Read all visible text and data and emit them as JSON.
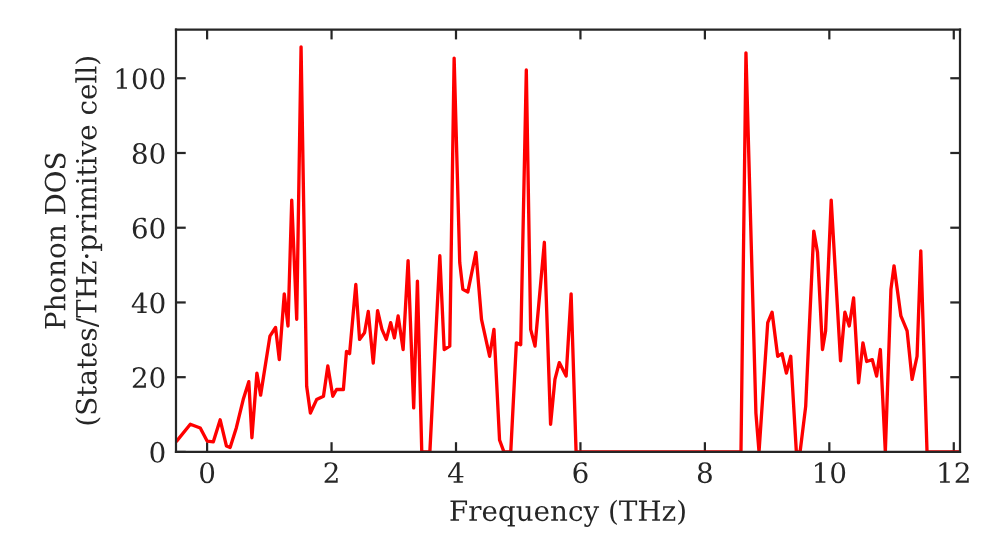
{
  "chart_data": {
    "type": "line",
    "xlabel": "Frequency (THz)",
    "ylabel": "Phonon DOS\n(States/THz·primitive cell)",
    "xlim": [
      -0.5,
      12.1
    ],
    "ylim": [
      0,
      113
    ],
    "xticks": [
      0,
      2,
      4,
      6,
      8,
      10,
      12
    ],
    "yticks": [
      0,
      20,
      40,
      60,
      80,
      100
    ],
    "marker": "none",
    "line_style": "solid",
    "series": [
      {
        "color": "#ff0000",
        "x": [
          -0.49,
          -0.27,
          -0.11,
          0.0,
          0.1,
          0.21,
          0.31,
          0.37,
          0.47,
          0.58,
          0.67,
          0.72,
          0.8,
          0.86,
          1.01,
          1.1,
          1.16,
          1.24,
          1.3,
          1.36,
          1.44,
          1.51,
          1.6,
          1.66,
          1.76,
          1.87,
          1.94,
          2.02,
          2.08,
          2.19,
          2.24,
          2.29,
          2.39,
          2.45,
          2.53,
          2.59,
          2.67,
          2.74,
          2.81,
          2.88,
          2.95,
          3.01,
          3.07,
          3.15,
          3.23,
          3.32,
          3.38,
          3.45,
          3.58,
          3.74,
          3.81,
          3.9,
          3.97,
          4.06,
          4.11,
          4.19,
          4.32,
          4.41,
          4.54,
          4.61,
          4.7,
          4.77,
          4.88,
          4.97,
          5.04,
          5.13,
          5.2,
          5.27,
          5.42,
          5.52,
          5.59,
          5.66,
          5.77,
          5.85,
          5.93,
          8.58,
          8.66,
          8.82,
          8.87,
          9.01,
          9.08,
          9.17,
          9.24,
          9.31,
          9.38,
          9.47,
          9.53,
          9.62,
          9.75,
          9.81,
          9.89,
          9.94,
          10.03,
          10.18,
          10.25,
          10.32,
          10.39,
          10.47,
          10.54,
          10.6,
          10.69,
          10.76,
          10.82,
          10.9,
          10.99,
          11.04,
          11.15,
          11.25,
          11.33,
          11.41,
          11.47,
          11.57,
          12.1
        ],
        "values": [
          2.9,
          7.4,
          6.4,
          2.9,
          2.7,
          8.6,
          1.6,
          1.2,
          6.5,
          14,
          18.8,
          3.8,
          21.1,
          15.2,
          31,
          33.3,
          24.7,
          42.3,
          33.7,
          67.4,
          35.5,
          108.4,
          17.6,
          10.4,
          14,
          14.9,
          23,
          14.9,
          16.7,
          16.7,
          26.9,
          26.3,
          44.8,
          30.1,
          31.9,
          37.6,
          23.8,
          37.8,
          32.8,
          30.1,
          34.6,
          30.5,
          36.4,
          27.4,
          51.2,
          11.8,
          45.7,
          0,
          0,
          52.5,
          27.4,
          28.3,
          105.4,
          50.7,
          43.5,
          42.8,
          53.4,
          35.5,
          25.6,
          32.8,
          3.2,
          0,
          0,
          29.2,
          28.7,
          102.2,
          32.8,
          28.3,
          56.1,
          7.4,
          19.4,
          23.9,
          20.3,
          42.3,
          0,
          0,
          106.8,
          10.4,
          0,
          34.6,
          37.4,
          25.6,
          26.3,
          21.1,
          25.6,
          0,
          0,
          12.2,
          59.1,
          53.4,
          27.4,
          32.4,
          67.4,
          24.4,
          37.4,
          33.7,
          41.2,
          18.5,
          29.2,
          24.2,
          24.7,
          20.3,
          27.4,
          0,
          43.5,
          49.8,
          36.4,
          32.4,
          19.4,
          25.6,
          53.8,
          0,
          0
        ]
      }
    ]
  }
}
